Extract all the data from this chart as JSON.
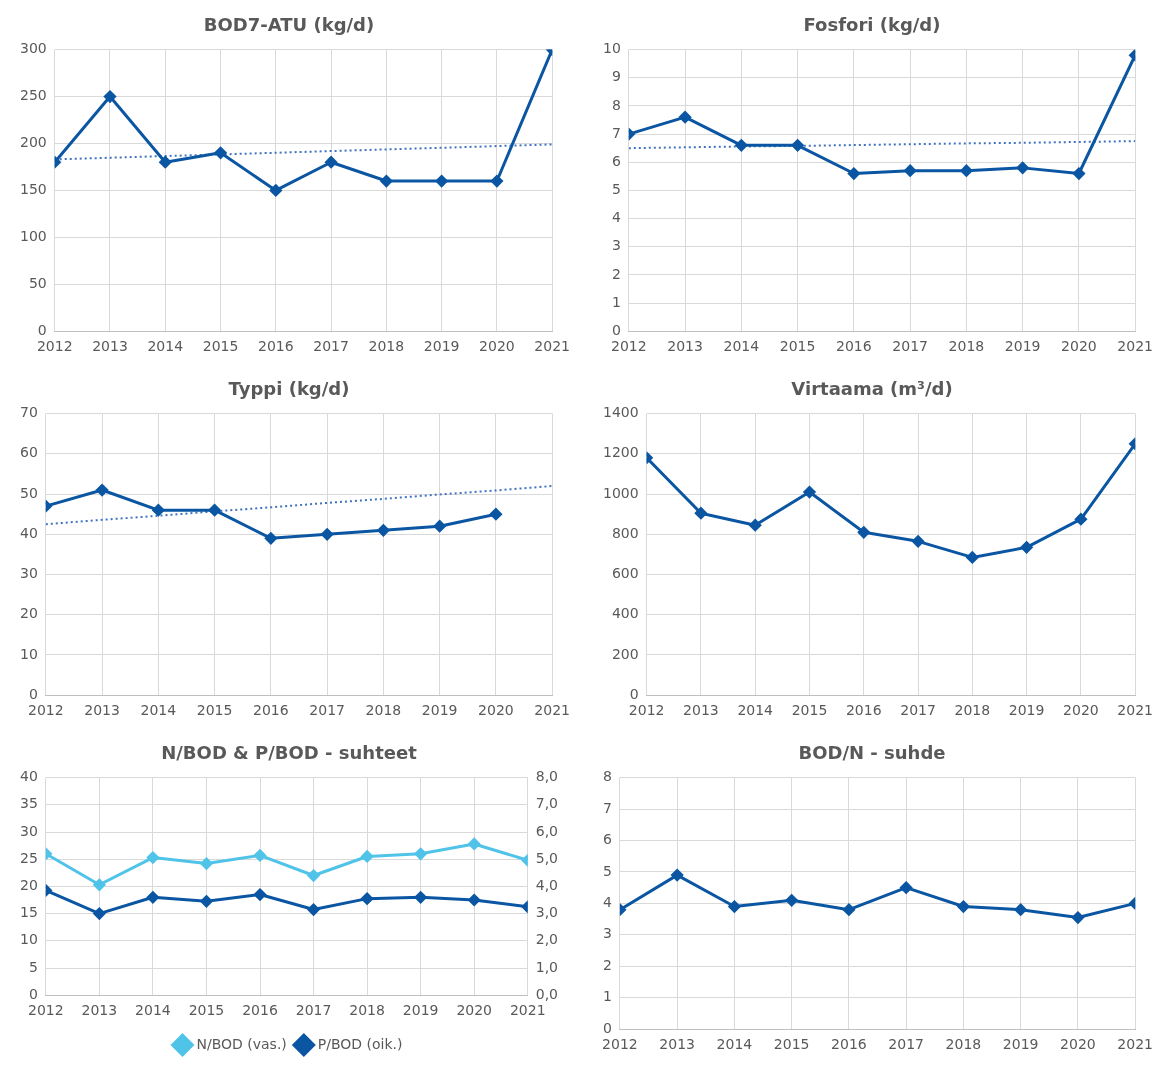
{
  "chart_data": [
    {
      "type": "line",
      "title": "BOD7-ATU (kg/d)",
      "categories": [
        "2012",
        "2013",
        "2014",
        "2015",
        "2016",
        "2017",
        "2018",
        "2019",
        "2020",
        "2021"
      ],
      "ylim": [
        0,
        300
      ],
      "yticks": [
        0,
        50,
        100,
        150,
        200,
        250,
        300
      ],
      "grid": true,
      "legend": false,
      "marker": "diamond",
      "series": [
        {
          "color": "#0b56a3",
          "values": [
            180,
            250,
            180,
            190,
            150,
            180,
            160,
            160,
            160,
            300
          ]
        },
        {
          "color": "#3f73c1",
          "values": [
            183,
            184.8,
            186.6,
            188.3,
            190.1,
            191.9,
            193.7,
            195.4,
            197.2,
            199
          ],
          "marker": "none",
          "line_style": "dotted"
        }
      ]
    },
    {
      "type": "line",
      "title": "Fosfori (kg/d)",
      "categories": [
        "2012",
        "2013",
        "2014",
        "2015",
        "2016",
        "2017",
        "2018",
        "2019",
        "2020",
        "2021"
      ],
      "ylim": [
        0,
        10
      ],
      "yticks": [
        0,
        1,
        2,
        3,
        4,
        5,
        6,
        7,
        8,
        9,
        10
      ],
      "grid": true,
      "legend": false,
      "marker": "diamond",
      "series": [
        {
          "color": "#0b56a3",
          "values": [
            7.0,
            7.6,
            6.6,
            6.6,
            5.6,
            5.7,
            5.7,
            5.8,
            5.6,
            9.8
          ]
        },
        {
          "color": "#3f73c1",
          "values": [
            6.5,
            6.53,
            6.56,
            6.58,
            6.61,
            6.64,
            6.67,
            6.69,
            6.72,
            6.75
          ],
          "marker": "none",
          "line_style": "dotted"
        }
      ]
    },
    {
      "type": "line",
      "title": "Typpi (kg/d)",
      "categories": [
        "2012",
        "2013",
        "2014",
        "2015",
        "2016",
        "2017",
        "2018",
        "2019",
        "2020",
        "2021"
      ],
      "ylim": [
        0,
        70
      ],
      "yticks": [
        0,
        10,
        20,
        30,
        40,
        50,
        60,
        70
      ],
      "grid": true,
      "legend": false,
      "marker": "diamond",
      "series": [
        {
          "color": "#0b56a3",
          "values": [
            47,
            51,
            46,
            46,
            39,
            40,
            41,
            42,
            45,
            null
          ]
        },
        {
          "color": "#3f73c1",
          "values": [
            42.5,
            43.6,
            44.6,
            45.7,
            46.7,
            47.8,
            48.8,
            49.9,
            50.9,
            52
          ],
          "marker": "none",
          "line_style": "dotted"
        }
      ]
    },
    {
      "type": "line",
      "title": "Virtaama (m³/d)",
      "categories": [
        "2012",
        "2013",
        "2014",
        "2015",
        "2016",
        "2017",
        "2018",
        "2019",
        "2020",
        "2021"
      ],
      "ylim": [
        0,
        1400
      ],
      "yticks": [
        0,
        200,
        400,
        600,
        800,
        1000,
        1200,
        1400
      ],
      "grid": true,
      "legend": false,
      "marker": "diamond",
      "series": [
        {
          "color": "#0b56a3",
          "values": [
            1180,
            905,
            845,
            1010,
            810,
            765,
            685,
            735,
            875,
            1250
          ]
        }
      ]
    },
    {
      "type": "line",
      "title": "N/BOD & P/BOD - suhteet",
      "categories": [
        "2012",
        "2013",
        "2014",
        "2015",
        "2016",
        "2017",
        "2018",
        "2019",
        "2020",
        "2021"
      ],
      "ylim": [
        0,
        40
      ],
      "yticks": [
        0,
        5,
        10,
        15,
        20,
        25,
        30,
        35,
        40
      ],
      "y2lim": [
        0,
        8
      ],
      "y2ticks": [
        {
          "value": 0,
          "label": "0,0"
        },
        {
          "value": 1,
          "label": "1,0"
        },
        {
          "value": 2,
          "label": "2,0"
        },
        {
          "value": 3,
          "label": "3,0"
        },
        {
          "value": 4,
          "label": "4,0"
        },
        {
          "value": 5,
          "label": "5,0"
        },
        {
          "value": 6,
          "label": "6,0"
        },
        {
          "value": 7,
          "label": "7,0"
        },
        {
          "value": 8,
          "label": "8,0"
        }
      ],
      "grid": true,
      "legend": "bottom",
      "marker": "diamond",
      "series": [
        {
          "name": "N/BOD (vas.)",
          "color": "#4fc3e8",
          "values": [
            26.0,
            20.3,
            25.3,
            24.2,
            25.7,
            22.0,
            25.5,
            26.0,
            27.8,
            24.8
          ]
        },
        {
          "name": "P/BOD (oik.)",
          "color": "#0b56a3",
          "axis": "y2",
          "values": [
            3.85,
            3.0,
            3.6,
            3.45,
            3.7,
            3.15,
            3.55,
            3.6,
            3.5,
            3.25
          ]
        }
      ]
    },
    {
      "type": "line",
      "title": "BOD/N - suhde",
      "categories": [
        "2012",
        "2013",
        "2014",
        "2015",
        "2016",
        "2017",
        "2018",
        "2019",
        "2020",
        "2021"
      ],
      "ylim": [
        0,
        8
      ],
      "yticks": [
        0,
        1,
        2,
        3,
        4,
        5,
        6,
        7,
        8
      ],
      "grid": true,
      "legend": false,
      "marker": "diamond",
      "series": [
        {
          "color": "#0b56a3",
          "values": [
            3.8,
            4.9,
            3.9,
            4.1,
            3.8,
            4.5,
            3.9,
            3.8,
            3.55,
            4.0
          ]
        }
      ]
    }
  ]
}
